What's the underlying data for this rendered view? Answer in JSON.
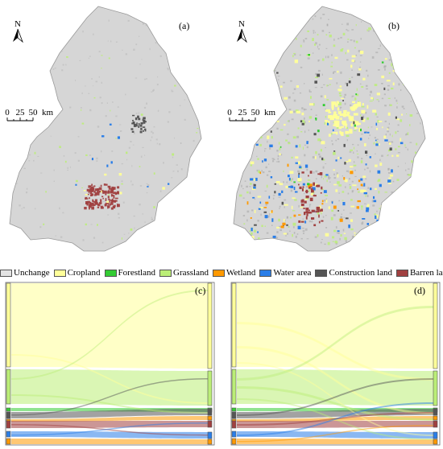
{
  "panels": {
    "a": {
      "label": "(a)"
    },
    "b": {
      "label": "(b)"
    },
    "c": {
      "label": "(c)"
    },
    "d": {
      "label": "(d)"
    }
  },
  "north_arrow": {
    "label": "N"
  },
  "scale_bar": {
    "ticks": [
      "0",
      "25",
      "50"
    ],
    "unit": "km"
  },
  "legend": {
    "items": [
      {
        "label": "Unchange",
        "color": "#e3e3e3"
      },
      {
        "label": "Cropland",
        "color": "#ffff99"
      },
      {
        "label": "Forestland",
        "color": "#33cc33"
      },
      {
        "label": "Grassland",
        "color": "#bbee77"
      },
      {
        "label": "Wetland",
        "color": "#ff9900"
      },
      {
        "label": "Water area",
        "color": "#2a7ee8"
      },
      {
        "label": "Construction land",
        "color": "#555555"
      },
      {
        "label": "Barren land",
        "color": "#a04040"
      }
    ]
  },
  "map_colors": {
    "land": "#d6d6d6",
    "outline": "#999999"
  }
}
